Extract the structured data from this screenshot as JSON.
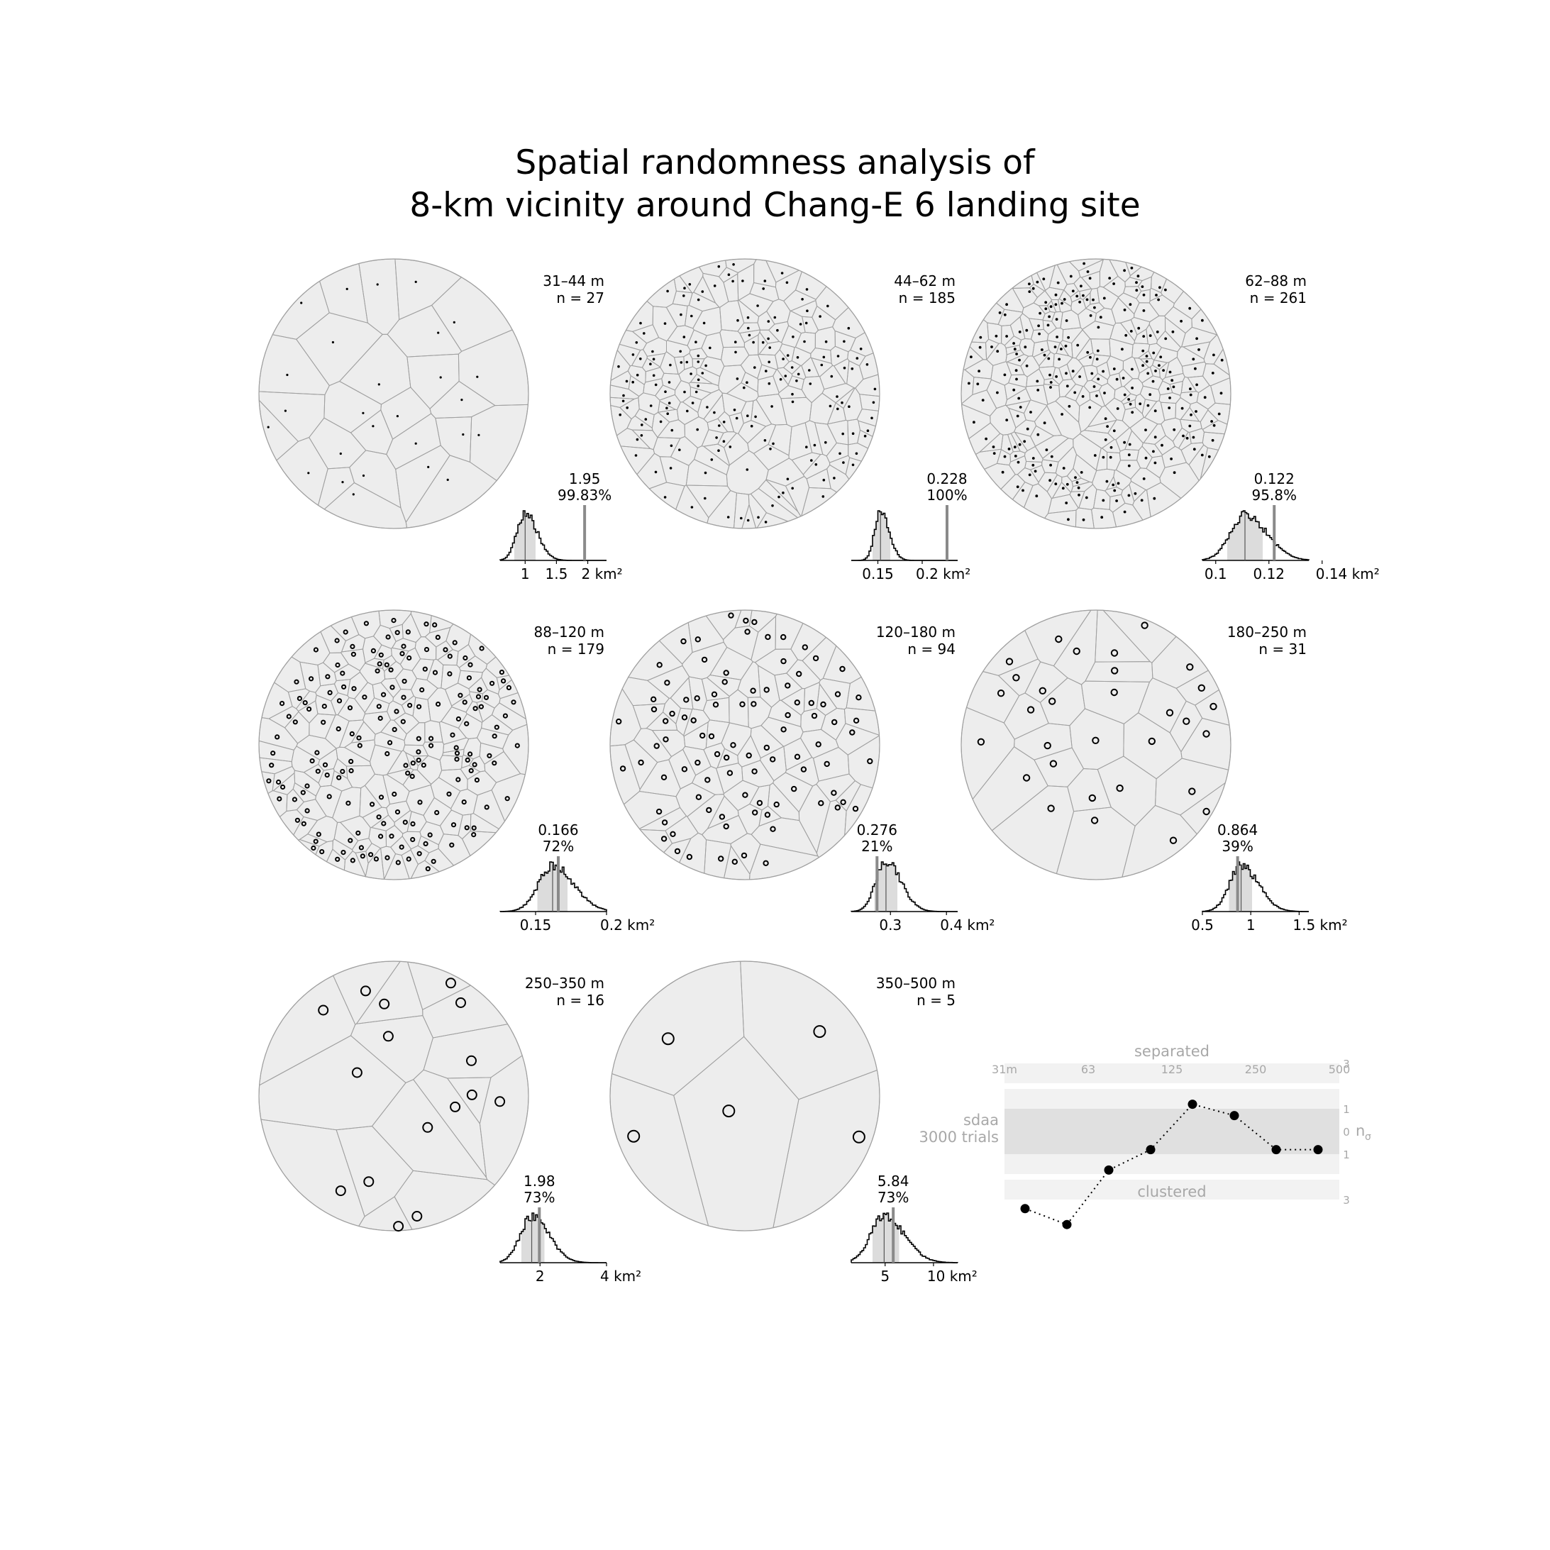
{
  "title_line1": "Spatial randomness analysis of",
  "title_line2": "8-km vicinity around Chang-E 6 landing site",
  "panels": [
    {
      "range": "31–44 m",
      "n_label": "n = 27",
      "n": 27,
      "value_label": "1.95",
      "pct_label": "99.83%",
      "hist": {
        "xmin": 0.6,
        "xmax": 2.3,
        "mean": 1.0,
        "sd": 0.13,
        "band": [
          0.85,
          1.15
        ],
        "observed": 1.95,
        "ticks": [
          {
            "v": 1,
            "label": "1"
          },
          {
            "v": 1.5,
            "label": "1.5"
          },
          {
            "v": 2,
            "label": "2 km²"
          }
        ]
      }
    },
    {
      "range": "44–62 m",
      "n_label": "n = 185",
      "n": 185,
      "value_label": "0.228",
      "pct_label": "100%",
      "hist": {
        "xmin": 0.12,
        "xmax": 0.24,
        "mean": 0.153,
        "sd": 0.0065,
        "band": [
          0.145,
          0.162
        ],
        "observed": 0.228,
        "ticks": [
          {
            "v": 0.15,
            "label": "0.15"
          },
          {
            "v": 0.2,
            "label": "0.2 km²"
          }
        ]
      }
    },
    {
      "range": "62–88 m",
      "n_label": "n = 261",
      "n": 261,
      "value_label": "0.122",
      "pct_label": "95.8%",
      "hist": {
        "xmin": 0.095,
        "xmax": 0.135,
        "mean": 0.111,
        "sd": 0.0055,
        "band": [
          0.105,
          0.117
        ],
        "observed": 0.122,
        "ticks": [
          {
            "v": 0.1,
            "label": "0.1"
          },
          {
            "v": 0.12,
            "label": "0.12"
          },
          {
            "v": 0.14,
            "label": "0.14 km²"
          }
        ]
      }
    },
    {
      "range": "88–120 m",
      "n_label": "n = 179",
      "n": 179,
      "value_label": "0.166",
      "pct_label": "72%",
      "hist": {
        "xmin": 0.125,
        "xmax": 0.2,
        "mean": 0.162,
        "sd": 0.01,
        "band": [
          0.152,
          0.172
        ],
        "observed": 0.166,
        "ticks": [
          {
            "v": 0.15,
            "label": "0.15"
          },
          {
            "v": 0.2,
            "label": "0.2 km²"
          }
        ]
      }
    },
    {
      "range": "120–180 m",
      "n_label": "n = 94",
      "n": 94,
      "value_label": "0.276",
      "pct_label": "21%",
      "hist": {
        "xmin": 0.23,
        "xmax": 0.42,
        "mean": 0.292,
        "sd": 0.018,
        "band": [
          0.274,
          0.31
        ],
        "observed": 0.276,
        "ticks": [
          {
            "v": 0.3,
            "label": "0.3"
          },
          {
            "v": 0.4,
            "label": "0.4 km²"
          }
        ]
      }
    },
    {
      "range": "180–250 m",
      "n_label": "n = 31",
      "n": 31,
      "value_label": "0.864",
      "pct_label": "39%",
      "hist": {
        "xmin": 0.5,
        "xmax": 1.6,
        "mean": 0.9,
        "sd": 0.12,
        "band": [
          0.78,
          1.0
        ],
        "observed": 0.864,
        "ticks": [
          {
            "v": 0.5,
            "label": "0.5"
          },
          {
            "v": 1,
            "label": "1"
          },
          {
            "v": 1.5,
            "label": "1.5 km²"
          }
        ]
      }
    },
    {
      "range": "250–350 m",
      "n_label": "n = 16",
      "n": 16,
      "value_label": "1.98",
      "pct_label": "73%",
      "hist": {
        "xmin": 0.8,
        "xmax": 4.0,
        "mean": 1.75,
        "sd": 0.35,
        "band": [
          1.45,
          2.1
        ],
        "observed": 1.98,
        "ticks": [
          {
            "v": 2,
            "label": "2"
          },
          {
            "v": 4,
            "label": "4 km²"
          }
        ]
      }
    },
    {
      "range": "350–500 m",
      "n_label": "n = 5",
      "n": 5,
      "value_label": "5.84",
      "pct_label": "73%",
      "hist": {
        "xmin": 1.5,
        "xmax": 12.5,
        "mean": 4.9,
        "sd": 1.4,
        "band": [
          3.7,
          6.3
        ],
        "observed": 5.84,
        "ticks": [
          {
            "v": 5,
            "label": "5"
          },
          {
            "v": 10,
            "label": "10 km²"
          }
        ]
      }
    }
  ],
  "chart_data": {
    "type": "line",
    "label_top": "separated",
    "label_bottom": "clustered",
    "label_left_line1": "sdaa",
    "label_left_line2": "3000 trials",
    "y_axis_label": "n",
    "y_axis_subscript": "σ",
    "x_ticks": [
      "31m",
      "63",
      "125",
      "250",
      "500"
    ],
    "y_ticks_right": [
      "3",
      "1",
      "0",
      "1",
      "3"
    ],
    "x": [
      "31–44 m",
      "44–62 m",
      "62–88 m",
      "88–120 m",
      "120–180 m",
      "180–250 m",
      "250–350 m",
      "350–500 m"
    ],
    "values": [
      -3.4,
      -4.1,
      -1.7,
      -0.8,
      1.2,
      0.7,
      -0.8,
      -0.8
    ],
    "ylim": [
      -3,
      3
    ],
    "line_style": "dotted",
    "colors": {
      "band_inner": "#e0e0e0",
      "band_outer": "#f2f2f2",
      "label": "#a8a8a8",
      "point": "#000000"
    }
  },
  "colors": {
    "disc_fill": "#ededed",
    "cell_stroke": "#a0a0a0",
    "hist_band": "#dcdcdc",
    "observed_line": "#8a8a8a"
  }
}
